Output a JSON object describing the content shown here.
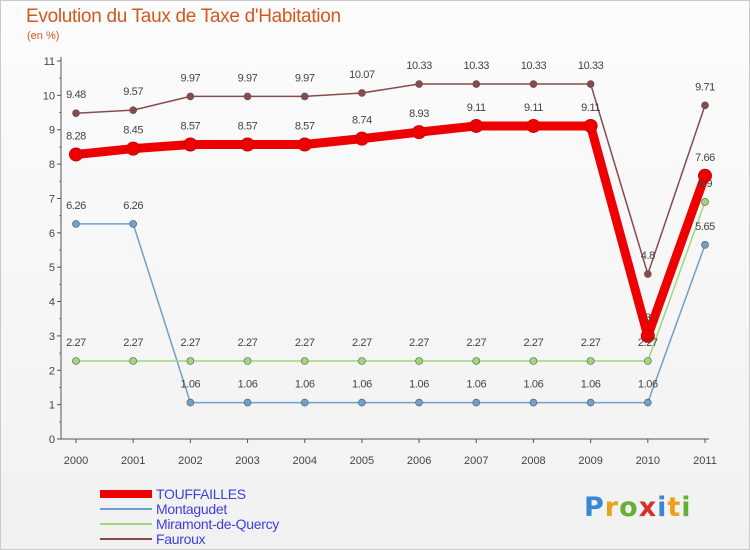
{
  "title": "Evolution du Taux de Taxe d'Habitation",
  "subtitle": "(en %)",
  "logo": {
    "letters": [
      "P",
      "r",
      "o",
      "x",
      "i",
      "t",
      "i"
    ],
    "colors": [
      "#3a87d6",
      "#e8a31a",
      "#63b134",
      "#d6302a",
      "#3a87d6",
      "#e8a31a",
      "#63b134"
    ]
  },
  "chart_data": {
    "type": "line",
    "title": "Evolution du Taux de Taxe d'Habitation",
    "ylabel": "(en %)",
    "xlabel": "",
    "x": [
      "2000",
      "2001",
      "2002",
      "2003",
      "2004",
      "2005",
      "2006",
      "2007",
      "2008",
      "2009",
      "2010",
      "2011"
    ],
    "ylim": [
      0,
      11
    ],
    "yticks": [
      "0",
      "1",
      "2",
      "3",
      "4",
      "5",
      "6",
      "7",
      "8",
      "9",
      "10",
      "11"
    ],
    "grid": false,
    "legend": "bottom-left",
    "series": [
      {
        "name": "TOUFFAILLES",
        "color": "#ee0000",
        "values": [
          8.28,
          8.45,
          8.57,
          8.57,
          8.57,
          8.74,
          8.93,
          9.11,
          9.11,
          9.11,
          3.0,
          7.66
        ],
        "labels": [
          "8.28",
          "8.45",
          "8.57",
          "8.57",
          "8.57",
          "8.74",
          "8.93",
          "9.11",
          "9.11",
          "9.11",
          "3",
          "7.66"
        ]
      },
      {
        "name": "Montagudet",
        "color": "#6f9fcb",
        "values": [
          6.26,
          6.26,
          1.06,
          1.06,
          1.06,
          1.06,
          1.06,
          1.06,
          1.06,
          1.06,
          1.06,
          5.65
        ],
        "labels": [
          "6.26",
          "6.26",
          "1.06",
          "1.06",
          "1.06",
          "1.06",
          "1.06",
          "1.06",
          "1.06",
          "1.06",
          "1.06",
          "5.65"
        ]
      },
      {
        "name": "Miramont-de-Quercy",
        "color": "#9fd877",
        "values": [
          2.27,
          2.27,
          2.27,
          2.27,
          2.27,
          2.27,
          2.27,
          2.27,
          2.27,
          2.27,
          2.27,
          6.9
        ],
        "labels": [
          "2.27",
          "2.27",
          "2.27",
          "2.27",
          "2.27",
          "2.27",
          "2.27",
          "2.27",
          "2.27",
          "2.27",
          "2.27",
          "6.9"
        ]
      },
      {
        "name": "Fauroux",
        "color": "#8a4a4a",
        "values": [
          9.48,
          9.57,
          9.97,
          9.97,
          9.97,
          10.07,
          10.33,
          10.33,
          10.33,
          10.33,
          4.8,
          9.71
        ],
        "labels": [
          "9.48",
          "9.57",
          "9.97",
          "9.97",
          "9.97",
          "10.07",
          "10.33",
          "10.33",
          "10.33",
          "10.33",
          "4.8",
          "9.71"
        ]
      }
    ]
  }
}
